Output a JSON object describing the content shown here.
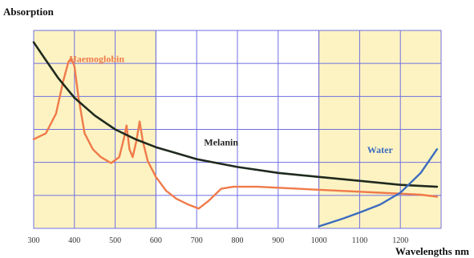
{
  "chart_data": {
    "type": "line",
    "ylabel": "Absorption",
    "xlabel": "Wavelengths nm",
    "x_ticks": [
      "300",
      "400",
      "500",
      "600",
      "700",
      "800",
      "900",
      "1000",
      "1100",
      "1200"
    ],
    "xlim": [
      300,
      1300
    ],
    "grid": true,
    "highlight_bands": [
      {
        "from": 300,
        "to": 600,
        "color": "#fdf3c2"
      },
      {
        "from": 1000,
        "to": 1300,
        "color": "#fdf3c2"
      }
    ],
    "series": [
      {
        "name": "Haemoglobin",
        "color": "#f07a4a",
        "points": [
          [
            300,
            0.45
          ],
          [
            330,
            0.48
          ],
          [
            355,
            0.58
          ],
          [
            372,
            0.74
          ],
          [
            385,
            0.84
          ],
          [
            392,
            0.86
          ],
          [
            400,
            0.82
          ],
          [
            410,
            0.66
          ],
          [
            425,
            0.48
          ],
          [
            445,
            0.4
          ],
          [
            465,
            0.36
          ],
          [
            490,
            0.33
          ],
          [
            510,
            0.36
          ],
          [
            522,
            0.46
          ],
          [
            528,
            0.52
          ],
          [
            535,
            0.4
          ],
          [
            543,
            0.36
          ],
          [
            552,
            0.44
          ],
          [
            560,
            0.54
          ],
          [
            568,
            0.44
          ],
          [
            580,
            0.34
          ],
          [
            600,
            0.26
          ],
          [
            625,
            0.19
          ],
          [
            650,
            0.15
          ],
          [
            680,
            0.12
          ],
          [
            705,
            0.1
          ],
          [
            730,
            0.14
          ],
          [
            760,
            0.2
          ],
          [
            790,
            0.21
          ],
          [
            850,
            0.21
          ],
          [
            950,
            0.2
          ],
          [
            1050,
            0.19
          ],
          [
            1150,
            0.18
          ],
          [
            1250,
            0.17
          ],
          [
            1290,
            0.16
          ]
        ]
      },
      {
        "name": "Melanin",
        "color": "#1f2a1e",
        "points": [
          [
            300,
            0.94
          ],
          [
            330,
            0.85
          ],
          [
            360,
            0.76
          ],
          [
            400,
            0.66
          ],
          [
            450,
            0.57
          ],
          [
            500,
            0.5
          ],
          [
            550,
            0.45
          ],
          [
            600,
            0.41
          ],
          [
            650,
            0.38
          ],
          [
            700,
            0.35
          ],
          [
            800,
            0.31
          ],
          [
            900,
            0.28
          ],
          [
            1000,
            0.26
          ],
          [
            1100,
            0.24
          ],
          [
            1200,
            0.22
          ],
          [
            1290,
            0.21
          ]
        ]
      },
      {
        "name": "Water",
        "color": "#3b6bbf",
        "points": [
          [
            1000,
            0.01
          ],
          [
            1030,
            0.03
          ],
          [
            1060,
            0.05
          ],
          [
            1100,
            0.08
          ],
          [
            1150,
            0.12
          ],
          [
            1200,
            0.18
          ],
          [
            1250,
            0.28
          ],
          [
            1290,
            0.4
          ]
        ]
      }
    ],
    "annotations": [
      {
        "text": "Haemoglobin",
        "x": 455,
        "y": 0.84,
        "color": "#f07a4a"
      },
      {
        "text": "Melanin",
        "x": 760,
        "y": 0.42,
        "color": "#222222"
      },
      {
        "text": "Water",
        "x": 1150,
        "y": 0.38,
        "color": "#3b6bbf"
      }
    ]
  }
}
